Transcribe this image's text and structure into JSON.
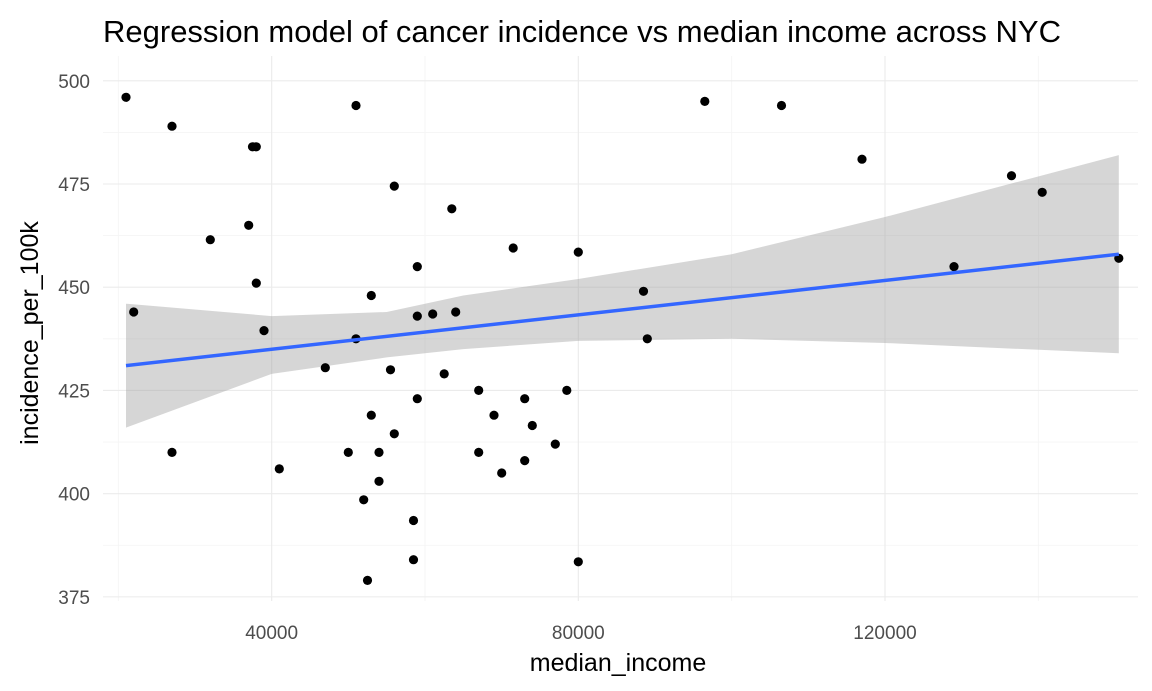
{
  "chart_data": {
    "type": "scatter",
    "title": "Regression model of cancer incidence vs median income across NYC",
    "xlabel": "median_income",
    "ylabel": "incidence_per_100k",
    "xlim": [
      18000,
      153000
    ],
    "ylim": [
      374,
      506
    ],
    "x_ticks": [
      40000,
      80000,
      120000
    ],
    "x_tick_labels": [
      "40000",
      "80000",
      "120000"
    ],
    "y_ticks": [
      375,
      400,
      425,
      450,
      475,
      500
    ],
    "y_tick_labels": [
      "375",
      "400",
      "425",
      "450",
      "475",
      "500"
    ],
    "x_minor_ticks": [
      20000,
      60000,
      100000,
      140000
    ],
    "y_minor_ticks": [
      387.5,
      412.5,
      437.5,
      462.5,
      487.5
    ],
    "grid": true,
    "legend": "none",
    "colors": {
      "points": "#000000",
      "fit": "#3366ff",
      "ribbon": "#999999"
    },
    "points": [
      {
        "x": 21000,
        "y": 496
      },
      {
        "x": 22000,
        "y": 444
      },
      {
        "x": 27000,
        "y": 489
      },
      {
        "x": 27000,
        "y": 410
      },
      {
        "x": 32000,
        "y": 461.5
      },
      {
        "x": 37000,
        "y": 465
      },
      {
        "x": 37500,
        "y": 484
      },
      {
        "x": 38000,
        "y": 484
      },
      {
        "x": 38000,
        "y": 451
      },
      {
        "x": 39000,
        "y": 439.5
      },
      {
        "x": 41000,
        "y": 406
      },
      {
        "x": 47000,
        "y": 430.5
      },
      {
        "x": 50000,
        "y": 410
      },
      {
        "x": 51000,
        "y": 494
      },
      {
        "x": 51000,
        "y": 437.5
      },
      {
        "x": 52000,
        "y": 398.5
      },
      {
        "x": 52500,
        "y": 379
      },
      {
        "x": 53000,
        "y": 419
      },
      {
        "x": 53000,
        "y": 448
      },
      {
        "x": 54000,
        "y": 410
      },
      {
        "x": 54000,
        "y": 403
      },
      {
        "x": 55500,
        "y": 430
      },
      {
        "x": 56000,
        "y": 474.5
      },
      {
        "x": 56000,
        "y": 414.5
      },
      {
        "x": 58500,
        "y": 384
      },
      {
        "x": 58500,
        "y": 393.5
      },
      {
        "x": 59000,
        "y": 423
      },
      {
        "x": 59000,
        "y": 443
      },
      {
        "x": 59000,
        "y": 455
      },
      {
        "x": 61000,
        "y": 443.5
      },
      {
        "x": 62500,
        "y": 429
      },
      {
        "x": 63500,
        "y": 469
      },
      {
        "x": 64000,
        "y": 444
      },
      {
        "x": 67000,
        "y": 425
      },
      {
        "x": 67000,
        "y": 410
      },
      {
        "x": 69000,
        "y": 419
      },
      {
        "x": 70000,
        "y": 405
      },
      {
        "x": 71500,
        "y": 459.5
      },
      {
        "x": 73000,
        "y": 408
      },
      {
        "x": 73000,
        "y": 423
      },
      {
        "x": 74000,
        "y": 416.5
      },
      {
        "x": 77000,
        "y": 412
      },
      {
        "x": 78500,
        "y": 425
      },
      {
        "x": 80000,
        "y": 383.5
      },
      {
        "x": 80000,
        "y": 458.5
      },
      {
        "x": 88500,
        "y": 449
      },
      {
        "x": 89000,
        "y": 437.5
      },
      {
        "x": 96500,
        "y": 495
      },
      {
        "x": 106500,
        "y": 494
      },
      {
        "x": 117000,
        "y": 481
      },
      {
        "x": 129000,
        "y": 455
      },
      {
        "x": 136500,
        "y": 477
      },
      {
        "x": 140500,
        "y": 473
      },
      {
        "x": 150500,
        "y": 457
      }
    ],
    "fit": {
      "x": [
        21000,
        150500
      ],
      "y": [
        431,
        458
      ]
    },
    "ribbon": {
      "x": [
        21000,
        40000,
        55000,
        65000,
        80000,
        100000,
        120000,
        150500
      ],
      "lower": [
        416,
        429,
        433,
        435,
        437,
        437.5,
        436.5,
        434
      ],
      "upper": [
        446,
        443,
        444,
        448,
        452,
        458,
        467,
        482
      ]
    }
  }
}
